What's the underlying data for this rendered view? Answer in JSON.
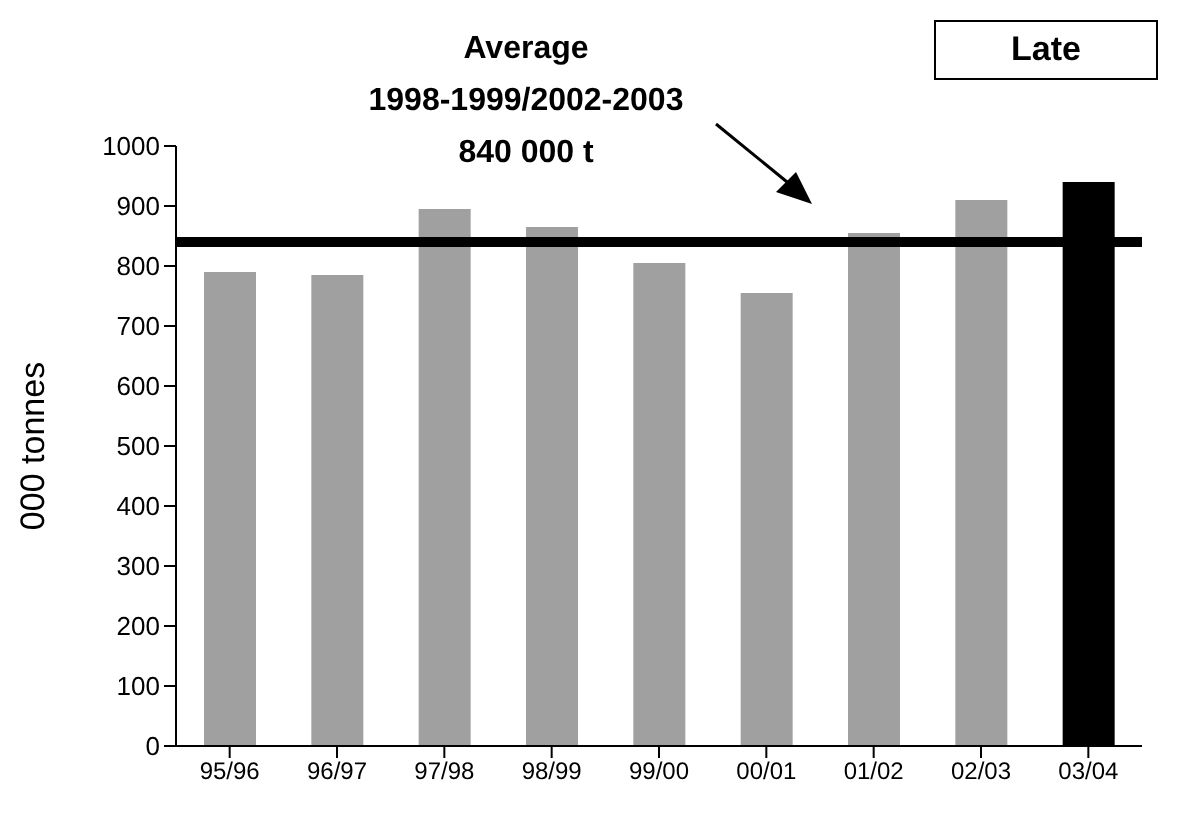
{
  "chart_data": {
    "type": "bar",
    "ylabel": "000 tonnes",
    "categories": [
      "95/96",
      "96/97",
      "97/98",
      "98/99",
      "99/00",
      "00/01",
      "01/02",
      "02/03",
      "03/04"
    ],
    "values": [
      790,
      785,
      895,
      865,
      805,
      755,
      855,
      910,
      940
    ],
    "colors": [
      "#a0a0a0",
      "#a0a0a0",
      "#a0a0a0",
      "#a0a0a0",
      "#a0a0a0",
      "#a0a0a0",
      "#a0a0a0",
      "#a0a0a0",
      "#000000"
    ],
    "ylim": [
      0,
      1000
    ],
    "yticks": [
      0,
      100,
      200,
      300,
      400,
      500,
      600,
      700,
      800,
      900,
      1000
    ],
    "grid": false,
    "ref_lines": [
      {
        "axis": "y",
        "value": 840,
        "label": "Average\n1998-1999/2002-2003\n840 000 t",
        "color": "#000000"
      }
    ],
    "annotations": [
      "Late"
    ]
  }
}
